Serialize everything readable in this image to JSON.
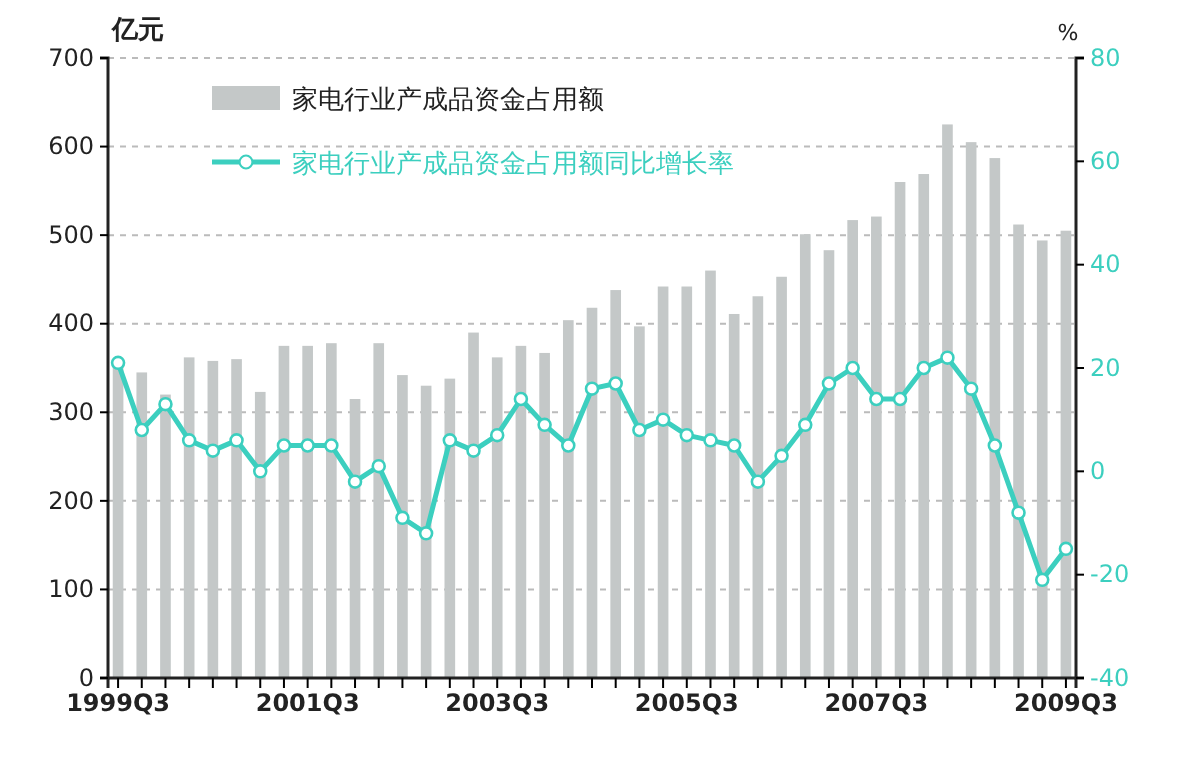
{
  "chart_data": {
    "type": "bar",
    "ylabel": "亿元",
    "y2label": "%",
    "categories": [
      "1999Q3",
      null,
      null,
      null,
      null,
      null,
      null,
      null,
      "2001Q3",
      null,
      null,
      null,
      null,
      null,
      null,
      null,
      "2003Q3",
      null,
      null,
      null,
      null,
      null,
      null,
      null,
      "2005Q3",
      null,
      null,
      null,
      null,
      null,
      null,
      null,
      "2007Q3",
      null,
      null,
      null,
      null,
      null,
      null,
      null,
      "2009Q3"
    ],
    "series": [
      {
        "name": "家电行业产成品资金占用额",
        "color": "#c4c8c8",
        "values": [
          355,
          345,
          320,
          362,
          358,
          360,
          323,
          375,
          375,
          378,
          315,
          378,
          342,
          330,
          338,
          390,
          362,
          375,
          367,
          404,
          418,
          438,
          397,
          442,
          442,
          460,
          411,
          431,
          453,
          501,
          483,
          517,
          521,
          560,
          569,
          625,
          605,
          587,
          512,
          494,
          505
        ]
      },
      {
        "name": "家电行业产成品资金占用额同比增长率",
        "type": "line",
        "axis": "y2",
        "color": "#3ccfbf",
        "values": [
          21,
          8,
          13,
          6,
          4,
          6,
          0,
          5,
          5,
          5,
          -2,
          1,
          -9,
          -12,
          6,
          4,
          7,
          14,
          9,
          5,
          16,
          17,
          8,
          10,
          7,
          6,
          5,
          -2,
          3,
          9,
          17,
          20,
          14,
          14,
          20,
          22,
          16,
          5,
          -8,
          -21,
          -15
        ]
      }
    ],
    "ylim": [
      0,
      700
    ],
    "yticks": [
      0,
      100,
      200,
      300,
      400,
      500,
      600,
      700
    ],
    "y2lim": [
      -40,
      80
    ],
    "y2ticks": [
      -40,
      -20,
      0,
      20,
      40,
      60,
      80
    ],
    "grid": "y",
    "legend": "top left",
    "marker": "circle",
    "line_style": "solid"
  }
}
